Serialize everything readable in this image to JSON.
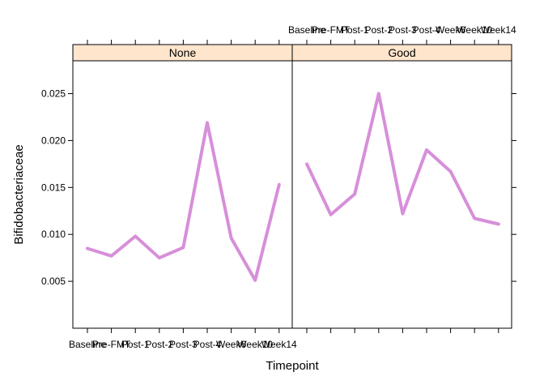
{
  "chart_data": {
    "type": "line",
    "xlabel": "Timepoint",
    "ylabel": "Bifidobacteriaceae",
    "categories": [
      "Baseline",
      "Pre-FMT",
      "Post-1",
      "Post-2",
      "Post-3",
      "Post-4",
      "Week6",
      "Week10",
      "Week14"
    ],
    "yticks": [
      "0.005",
      "0.010",
      "0.015",
      "0.020",
      "0.025"
    ],
    "ylim": [
      0.0,
      0.0285
    ],
    "line_color": "#d78fd9",
    "strip_color": "#ffe5cc",
    "panels": [
      {
        "name": "None",
        "values": [
          0.0085,
          0.0077,
          0.0098,
          0.0075,
          0.0086,
          0.0219,
          0.0096,
          0.0051,
          0.0153
        ]
      },
      {
        "name": "Good",
        "values": [
          0.0175,
          0.0121,
          0.0143,
          0.025,
          0.0122,
          0.019,
          0.0167,
          0.0117,
          0.0111
        ]
      }
    ]
  }
}
